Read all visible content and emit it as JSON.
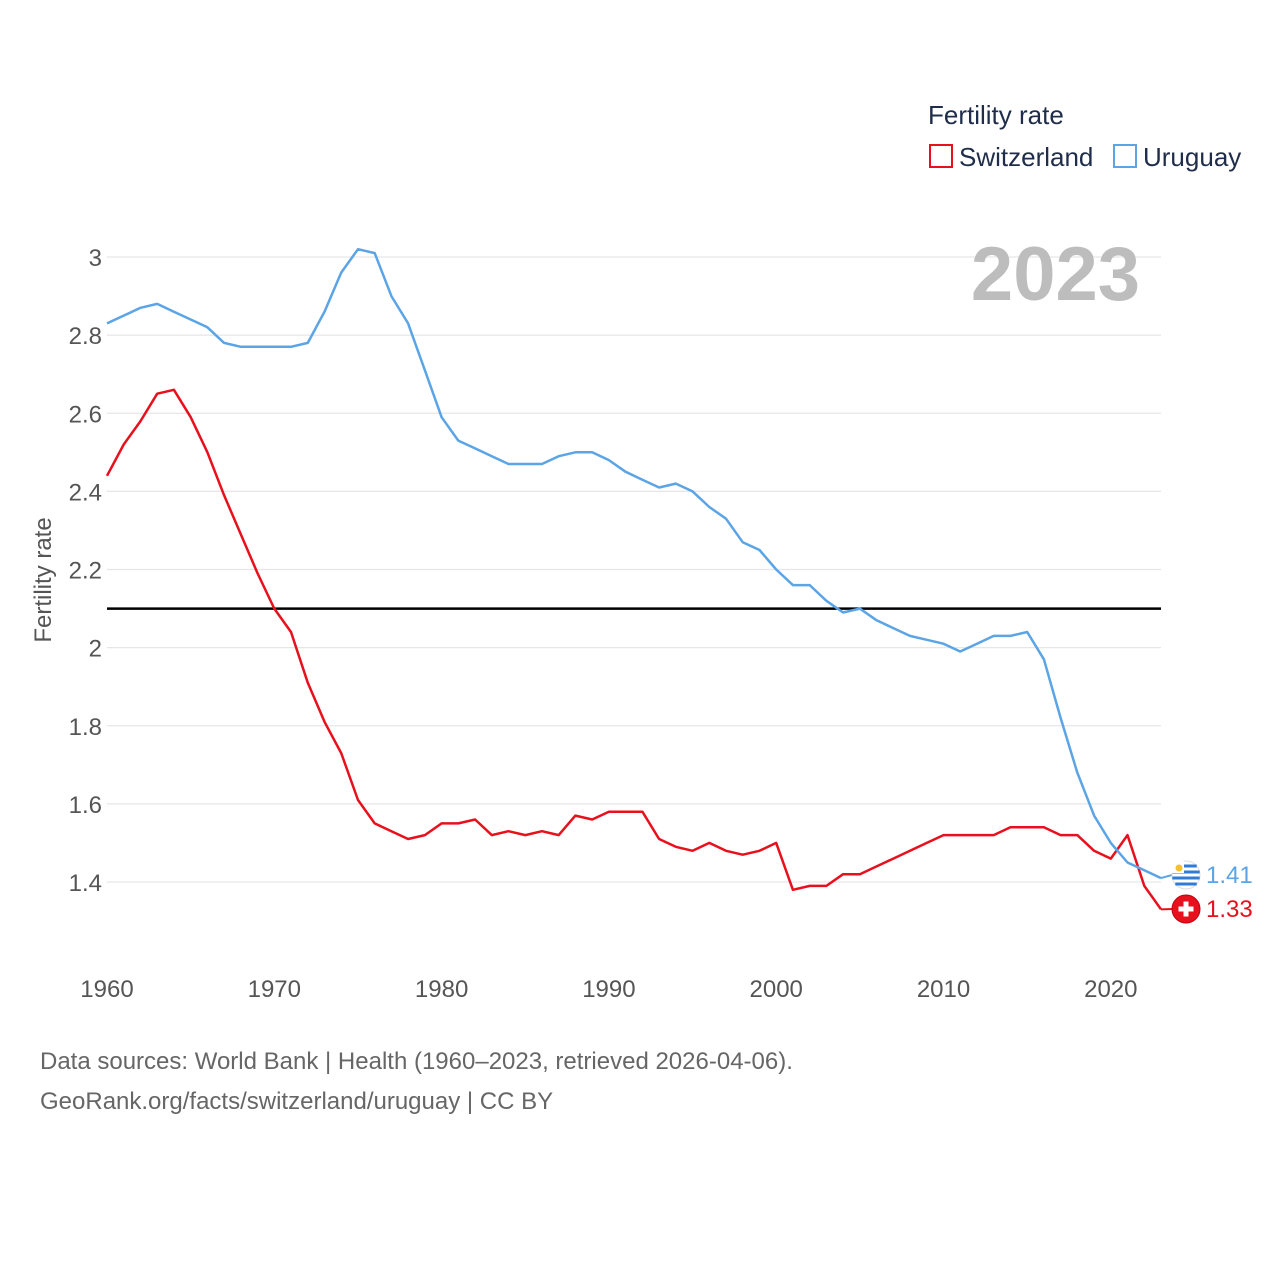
{
  "chart_data": {
    "type": "line",
    "title": "",
    "legend_title": "Fertility rate",
    "ylabel": "Fertility rate",
    "xlabel": "",
    "xlim": [
      1960,
      2023
    ],
    "ylim": [
      1.2,
      3.1
    ],
    "x_ticks": [
      1960,
      1970,
      1980,
      1990,
      2000,
      2010,
      2020
    ],
    "y_ticks": [
      1.4,
      1.6,
      1.8,
      2,
      2.2,
      2.4,
      2.6,
      2.8,
      3
    ],
    "y_tick_labels": [
      "1.4",
      "1.6",
      "1.8",
      "2",
      "2.2",
      "2.4",
      "2.6",
      "2.8",
      "3"
    ],
    "x_tick_labels": [
      "1960",
      "1970",
      "1980",
      "1990",
      "2000",
      "2010",
      "2020"
    ],
    "reference_line": 2.1,
    "current_year": "2023",
    "x": [
      1960,
      1961,
      1962,
      1963,
      1964,
      1965,
      1966,
      1967,
      1968,
      1969,
      1970,
      1971,
      1972,
      1973,
      1974,
      1975,
      1976,
      1977,
      1978,
      1979,
      1980,
      1981,
      1982,
      1983,
      1984,
      1985,
      1986,
      1987,
      1988,
      1989,
      1990,
      1991,
      1992,
      1993,
      1994,
      1995,
      1996,
      1997,
      1998,
      1999,
      2000,
      2001,
      2002,
      2003,
      2004,
      2005,
      2006,
      2007,
      2008,
      2009,
      2010,
      2011,
      2012,
      2013,
      2014,
      2015,
      2016,
      2017,
      2018,
      2019,
      2020,
      2021,
      2022,
      2023
    ],
    "series": [
      {
        "name": "Switzerland",
        "color": "#e8101c",
        "end_label": "1.33",
        "flag": "switzerland-flag-icon",
        "values": [
          2.44,
          2.52,
          2.58,
          2.65,
          2.66,
          2.59,
          2.5,
          2.39,
          2.29,
          2.19,
          2.1,
          2.04,
          1.91,
          1.81,
          1.73,
          1.61,
          1.55,
          1.53,
          1.51,
          1.52,
          1.55,
          1.55,
          1.56,
          1.52,
          1.53,
          1.52,
          1.53,
          1.52,
          1.57,
          1.56,
          1.58,
          1.58,
          1.58,
          1.51,
          1.49,
          1.48,
          1.5,
          1.48,
          1.47,
          1.48,
          1.5,
          1.38,
          1.39,
          1.39,
          1.42,
          1.42,
          1.44,
          1.46,
          1.48,
          1.5,
          1.52,
          1.52,
          1.52,
          1.52,
          1.54,
          1.54,
          1.54,
          1.52,
          1.52,
          1.48,
          1.46,
          1.52,
          1.39,
          1.33
        ]
      },
      {
        "name": "Uruguay",
        "color": "#5ba4e5",
        "end_label": "1.41",
        "flag": "uruguay-flag-icon",
        "values": [
          2.83,
          2.85,
          2.87,
          2.88,
          2.86,
          2.84,
          2.82,
          2.78,
          2.77,
          2.77,
          2.77,
          2.77,
          2.78,
          2.86,
          2.96,
          3.02,
          3.01,
          2.9,
          2.83,
          2.71,
          2.59,
          2.53,
          2.51,
          2.49,
          2.47,
          2.47,
          2.47,
          2.49,
          2.5,
          2.5,
          2.48,
          2.45,
          2.43,
          2.41,
          2.42,
          2.4,
          2.36,
          2.33,
          2.27,
          2.25,
          2.2,
          2.16,
          2.16,
          2.12,
          2.09,
          2.1,
          2.07,
          2.05,
          2.03,
          2.02,
          2.01,
          1.99,
          2.01,
          2.03,
          2.03,
          2.04,
          1.97,
          1.82,
          1.68,
          1.57,
          1.5,
          1.45,
          1.43,
          1.41
        ]
      }
    ]
  },
  "source": {
    "line1": "Data sources: World Bank | Health (1960–2023, retrieved 2026-04-06).",
    "line2": "GeoRank.org/facts/switzerland/uruguay | CC BY"
  }
}
